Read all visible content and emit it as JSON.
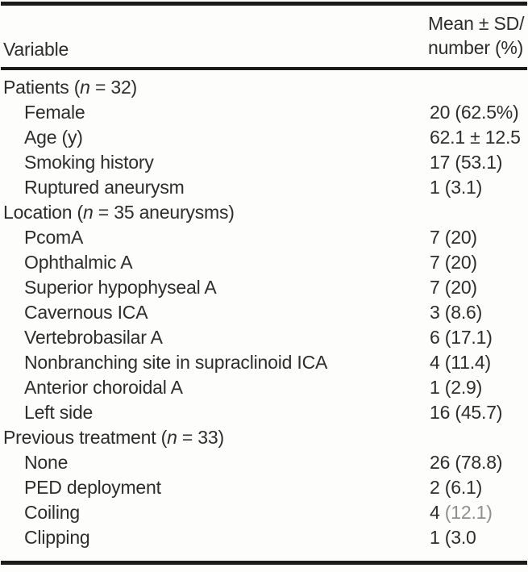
{
  "table": {
    "header": {
      "col1": "Variable",
      "col2_line1": "Mean ± SD/",
      "col2_line2": "number (%)"
    },
    "rows": [
      {
        "type": "section",
        "pre": "Patients (",
        "n": "n",
        "post": " = 32)",
        "value": ""
      },
      {
        "type": "item",
        "label": "Female",
        "value": "20 (62.5%)"
      },
      {
        "type": "item",
        "label": "Age (y)",
        "value": "62.1 ± 12.5"
      },
      {
        "type": "item",
        "label": "Smoking history",
        "value": "17 (53.1)"
      },
      {
        "type": "item",
        "label": "Ruptured aneurysm",
        "value": "1 (3.1)"
      },
      {
        "type": "section",
        "pre": "Location (",
        "n": "n",
        "post": " = 35 aneurysms)",
        "value": ""
      },
      {
        "type": "item",
        "label": "PcomA",
        "value": "7 (20)"
      },
      {
        "type": "item",
        "label": "Ophthalmic A",
        "value": "7 (20)"
      },
      {
        "type": "item",
        "label": "Superior hypophyseal A",
        "value": "7 (20)"
      },
      {
        "type": "item",
        "label": "Cavernous ICA",
        "value": "3 (8.6)"
      },
      {
        "type": "item",
        "label": "Vertebrobasilar A",
        "value": "6 (17.1)"
      },
      {
        "type": "item",
        "label": "Nonbranching site in supraclinoid ICA",
        "value": "4 (11.4)"
      },
      {
        "type": "item",
        "label": "Anterior choroidal A",
        "value": "1 (2.9)"
      },
      {
        "type": "item",
        "label": "Left side",
        "value": "16 (45.7)"
      },
      {
        "type": "section",
        "pre": "Previous treatment (",
        "n": "n",
        "post": " = 33)",
        "value": ""
      },
      {
        "type": "item",
        "label": "None",
        "value": "26 (78.8)"
      },
      {
        "type": "item",
        "label": "PED deployment",
        "value": "2 (6.1)"
      },
      {
        "type": "item",
        "label": "Coiling",
        "value": "4 ",
        "value_faded": "(12.1)"
      },
      {
        "type": "item",
        "label": "Clipping",
        "value": "1 (3.0"
      }
    ]
  }
}
